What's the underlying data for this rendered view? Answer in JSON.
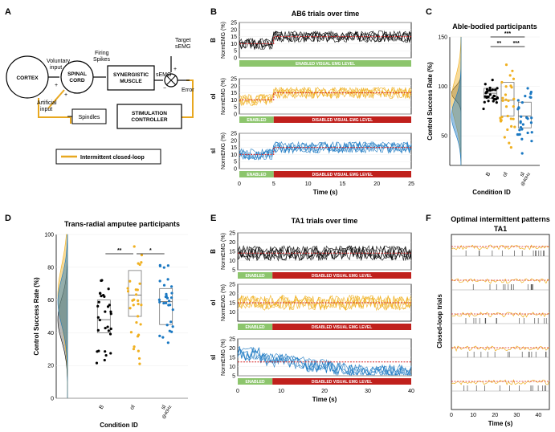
{
  "colors": {
    "baseline": "#000000",
    "ol": "#f0b020",
    "sl": "#1a78c2",
    "threshold": "#d62020",
    "enabled": "#8cc56c",
    "disabled": "#c0201c",
    "feedback": "#e8a820"
  },
  "panel_labels": [
    "A",
    "B",
    "C",
    "D",
    "E",
    "F"
  ],
  "diagram": {
    "nodes": {
      "cortex": "CORTEX",
      "spinal": "SPINAL\nCORD",
      "muscle": "SYNERGISTIC\nMUSCLE",
      "spindles": "Spindles",
      "stim": "STIMULATION\nCONTROLLER"
    },
    "edges": {
      "voluntary": "Voluntary\ninput",
      "artificial": "Artificial\ninput",
      "firing": "Firing\nSpikes",
      "semg": "sEMG",
      "target": "Target\nsEMG",
      "error": "Error",
      "plus1": "+",
      "plus2": "+",
      "minus": "−",
      "plus3": "+"
    },
    "legend": "Intermittent closed-loop"
  },
  "chart_data": [
    {
      "id": "B",
      "type": "line",
      "title": "AB6 trials over time",
      "xlabel": "Time (s)",
      "xlim": [
        0,
        25
      ],
      "xticks": [
        0,
        5,
        10,
        15,
        20,
        25
      ],
      "ylabel_unit": "NormEMG (%)",
      "enabled_label": "ENABLED",
      "disabled_label": "DISABLED VISUAL EMG LEVEL",
      "enabled_full_label": "ENABLED VISUAL EMG LEVEL",
      "subplots": [
        {
          "condition": "B",
          "ylim": [
            0,
            25
          ],
          "yticks": [
            0,
            5,
            10,
            15,
            20,
            25
          ],
          "threshold_before": 10,
          "threshold_after": 15,
          "switch": 5,
          "enabled_full": true
        },
        {
          "condition": "ol",
          "ylim": [
            0,
            25
          ],
          "yticks": [
            0,
            5,
            10,
            15,
            20,
            25
          ],
          "threshold_before": 10,
          "threshold_after": 15,
          "switch": 5,
          "enabled_full": false
        },
        {
          "condition": "sl",
          "ylim": [
            0,
            25
          ],
          "yticks": [
            0,
            5,
            10,
            15,
            20,
            25
          ],
          "threshold_before": 10,
          "threshold_after": 15,
          "switch": 5,
          "enabled_full": false
        }
      ]
    },
    {
      "id": "C",
      "type": "scatter",
      "title": "Able-bodied participants",
      "ylabel": "Control Success Rate (%)",
      "xlabel": "Condition ID",
      "ylim": [
        20,
        150
      ],
      "yticks": [
        50,
        100,
        150
      ],
      "categories": [
        "B",
        "ol",
        "sl"
      ],
      "sl_sub": "@40Hz",
      "medians": [
        93,
        86,
        70
      ],
      "q1": [
        88,
        70,
        58
      ],
      "q3": [
        98,
        104,
        84
      ],
      "sig": [
        "**",
        "***",
        "***"
      ]
    },
    {
      "id": "D",
      "type": "scatter",
      "title": "Trans-radial amputee participants",
      "ylabel": "Control Success Rate (%)",
      "xlabel": "Condition ID",
      "ylim": [
        0,
        100
      ],
      "yticks": [
        0,
        20,
        40,
        60,
        80,
        100
      ],
      "categories": [
        "B",
        "ol",
        "sl"
      ],
      "sl_sub": "@40Hz",
      "medians": [
        48,
        63,
        59
      ],
      "q1": [
        40,
        50,
        45
      ],
      "q3": [
        60,
        78,
        67
      ],
      "sig": [
        "**",
        "*"
      ]
    },
    {
      "id": "E",
      "type": "line",
      "title": "TA1 trials over time",
      "xlabel": "Time (s)",
      "xlim": [
        0,
        40
      ],
      "xticks": [
        0,
        10,
        20,
        30,
        40
      ],
      "ylabel_unit": "NormEMG (%)",
      "enabled_label": "ENABLED",
      "disabled_label": "DISABLED VISUAL EMG LEVEL",
      "subplots": [
        {
          "condition": "B",
          "ylim": [
            5,
            25
          ],
          "yticks": [
            5,
            10,
            15,
            20,
            25
          ],
          "threshold": 14,
          "switch": 5
        },
        {
          "condition": "ol",
          "ylim": [
            5,
            25
          ],
          "yticks": [
            10,
            15,
            20,
            25
          ],
          "threshold": 15,
          "switch": 5
        },
        {
          "condition": "sl",
          "ylim": [
            5,
            25
          ],
          "yticks": [
            5,
            10,
            15,
            20,
            25
          ],
          "threshold": 12.5,
          "switch": 5
        }
      ]
    },
    {
      "id": "F",
      "type": "line",
      "title": "Optimal intermittent patterns",
      "subtitle": "TA1",
      "ylabel": "Closed-loop trials",
      "xlabel": "Time (s)",
      "xlim": [
        0,
        45
      ],
      "xticks": [
        0,
        10,
        20,
        30,
        40
      ],
      "n_trials": 5
    }
  ]
}
